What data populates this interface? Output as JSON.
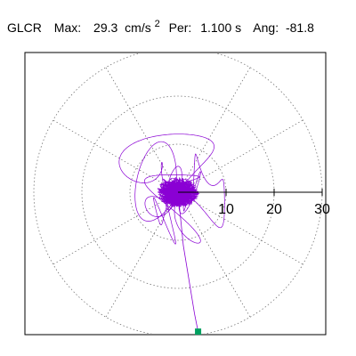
{
  "header": {
    "station": "GLCR",
    "max_label": "Max:",
    "max_value": "29.3",
    "max_unit_base": "cm/s",
    "max_unit_exp": "2",
    "per_label": "Per:",
    "per_value": "1.100 s",
    "ang_label": "Ang:",
    "ang_value": "-81.8"
  },
  "chart_data": {
    "type": "polar-trajectory",
    "radial_max": 30,
    "radial_ticks": [
      10,
      20,
      30
    ],
    "grid_rings": [
      10,
      20,
      30
    ],
    "grid_spoke_step_deg": 30,
    "peak": {
      "magnitude": 29.3,
      "angle_deg": -81.8
    },
    "colors": {
      "trace": "#8a00d4",
      "grid": "#777777",
      "axis": "#000000",
      "marker": "#00a060"
    }
  }
}
